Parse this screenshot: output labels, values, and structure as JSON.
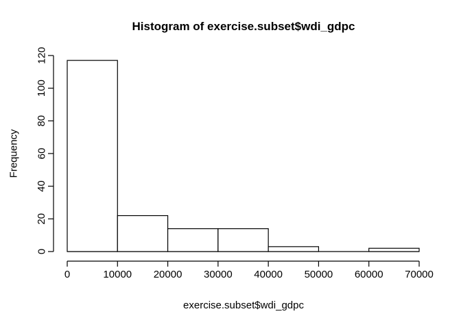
{
  "window": {
    "background": "#ffffff"
  },
  "chart_data": {
    "type": "bar",
    "subtype": "histogram",
    "title": "Histogram of exercise.subset$wdi_gdpc",
    "xlabel": "exercise.subset$wdi_gdpc",
    "ylabel": "Frequency",
    "breaks": [
      0,
      10000,
      20000,
      30000,
      40000,
      50000,
      60000,
      70000
    ],
    "counts": [
      117,
      22,
      14,
      14,
      3,
      0,
      2
    ],
    "x_ticks": [
      0,
      10000,
      20000,
      30000,
      40000,
      50000,
      60000,
      70000
    ],
    "x_tick_labels": [
      "0",
      "10000",
      "20000",
      "30000",
      "40000",
      "50000",
      "60000",
      "70000"
    ],
    "y_ticks": [
      0,
      20,
      40,
      60,
      80,
      100,
      120
    ],
    "y_tick_labels": [
      "0",
      "20",
      "40",
      "60",
      "80",
      "100",
      "120"
    ],
    "xlim": [
      0,
      70000
    ],
    "ylim": [
      0,
      120
    ],
    "grid": false,
    "legend": null,
    "bar_fill": "#ffffff",
    "bar_stroke": "#000000",
    "axis_color": "#000000",
    "text_color": "#000000"
  }
}
